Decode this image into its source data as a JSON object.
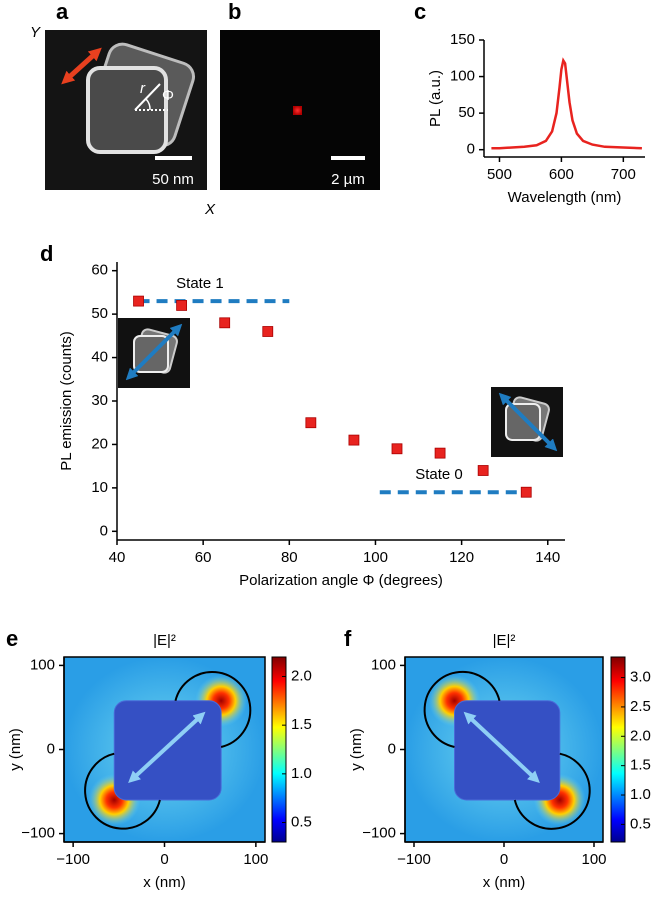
{
  "panel_labels": [
    "a",
    "b",
    "c",
    "d",
    "e",
    "f"
  ],
  "images": {
    "a": {
      "axis_y": "Y",
      "axis_x": "X",
      "radius": "r",
      "angle": "Φ",
      "scale_bar": "50 nm"
    },
    "b": {
      "scale_bar": "2 µm"
    }
  },
  "chart_data": [
    {
      "type": "line",
      "xlabel": "Wavelength (nm)",
      "ylabel": "PL (a.u.)",
      "x": [
        487,
        500,
        520,
        540,
        560,
        575,
        585,
        592,
        597,
        600,
        603,
        606,
        609,
        613,
        618,
        625,
        635,
        650,
        670,
        700,
        730
      ],
      "values": [
        2,
        2,
        3,
        4,
        6,
        12,
        25,
        50,
        85,
        110,
        122,
        118,
        95,
        65,
        40,
        22,
        12,
        7,
        4,
        3,
        2
      ],
      "color": "#e8231f",
      "xlim": [
        475,
        735
      ],
      "ylim": [
        -10,
        150
      ],
      "xticks": [
        500,
        600,
        700
      ],
      "yticks": [
        0,
        50,
        100,
        150
      ]
    },
    {
      "type": "scatter",
      "xlabel": "Polarization angle Φ (degrees)",
      "ylabel": "PL emission (counts)",
      "x": [
        45,
        55,
        65,
        75,
        85,
        95,
        105,
        115,
        125,
        135
      ],
      "values": [
        53,
        52,
        48,
        46,
        25,
        21,
        19,
        18,
        14,
        9
      ],
      "color": "#e8231f",
      "xlim": [
        40,
        144
      ],
      "ylim": [
        -2,
        62
      ],
      "xticks": [
        40,
        60,
        80,
        100,
        120,
        140
      ],
      "yticks": [
        0,
        10,
        20,
        30,
        40,
        50,
        60
      ],
      "reference_lines": [
        {
          "label": "State 1",
          "y": 53,
          "x": [
            45,
            80
          ]
        },
        {
          "label": "State 0",
          "y": 9,
          "x": [
            101,
            135
          ]
        }
      ],
      "reference_color": "#1f7cc1"
    },
    {
      "type": "heatmap",
      "title": "|E|²",
      "xlabel": "x (nm)",
      "ylabel": "y (nm)",
      "xlim": [
        -110,
        110
      ],
      "ylim": [
        -110,
        110
      ],
      "xticks": [
        {
          "value": -100,
          "label": "−100"
        },
        0,
        100
      ],
      "yticks": [
        {
          "value": -100,
          "label": "−100"
        },
        0,
        100
      ],
      "clim": [
        0.3,
        2.2
      ],
      "cticks": [
        0.5,
        {
          "value": 1,
          "label": "1.0"
        },
        1.5,
        {
          "value": 2,
          "label": "2.0"
        }
      ]
    },
    {
      "type": "heatmap",
      "title": "|E|²",
      "xlabel": "x (nm)",
      "ylabel": "y (nm)",
      "xlim": [
        -110,
        110
      ],
      "ylim": [
        -110,
        110
      ],
      "xticks": [
        {
          "value": -100,
          "label": "−100"
        },
        0,
        100
      ],
      "yticks": [
        {
          "value": -100,
          "label": "−100"
        },
        0,
        100
      ],
      "clim": [
        0.2,
        3.35
      ],
      "cticks": [
        0.5,
        {
          "value": 1,
          "label": "1.0"
        },
        1.5,
        {
          "value": 2,
          "label": "2.0"
        },
        2.5,
        {
          "value": 3,
          "label": "3.0"
        }
      ]
    }
  ]
}
